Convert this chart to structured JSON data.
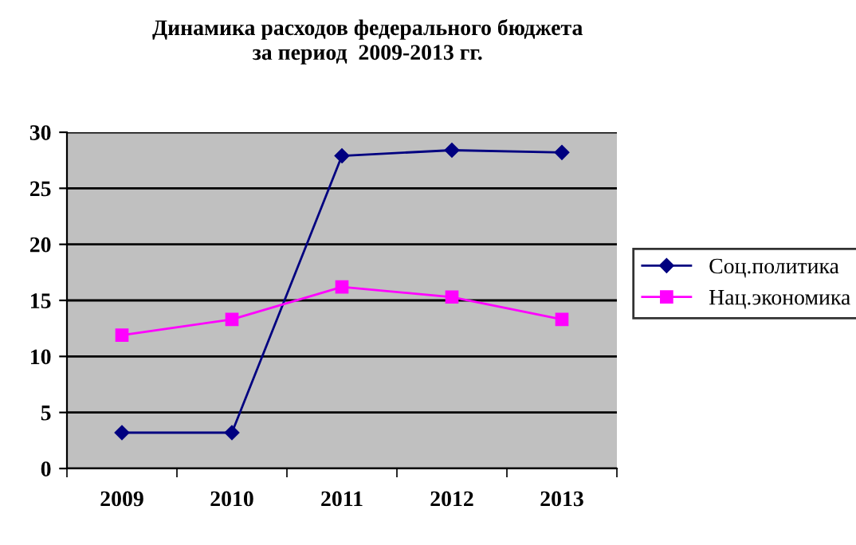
{
  "chart_data": {
    "type": "line",
    "title": "Динамика расходов федерального бюджета\nза период  2009-2013 гг.",
    "categories": [
      "2009",
      "2010",
      "2011",
      "2012",
      "2013"
    ],
    "series": [
      {
        "name": "Соц.политика",
        "color": "#000080",
        "marker": "diamond",
        "values": [
          3.2,
          3.2,
          27.9,
          28.4,
          28.2
        ]
      },
      {
        "name": "Нац.экономика",
        "color": "#ff00ff",
        "marker": "square",
        "values": [
          11.9,
          13.3,
          16.2,
          15.3,
          13.3
        ]
      }
    ],
    "ylim": [
      0,
      30
    ],
    "yticks": [
      0,
      5,
      10,
      15,
      20,
      25,
      30
    ],
    "grid": "y",
    "legend": "right"
  }
}
